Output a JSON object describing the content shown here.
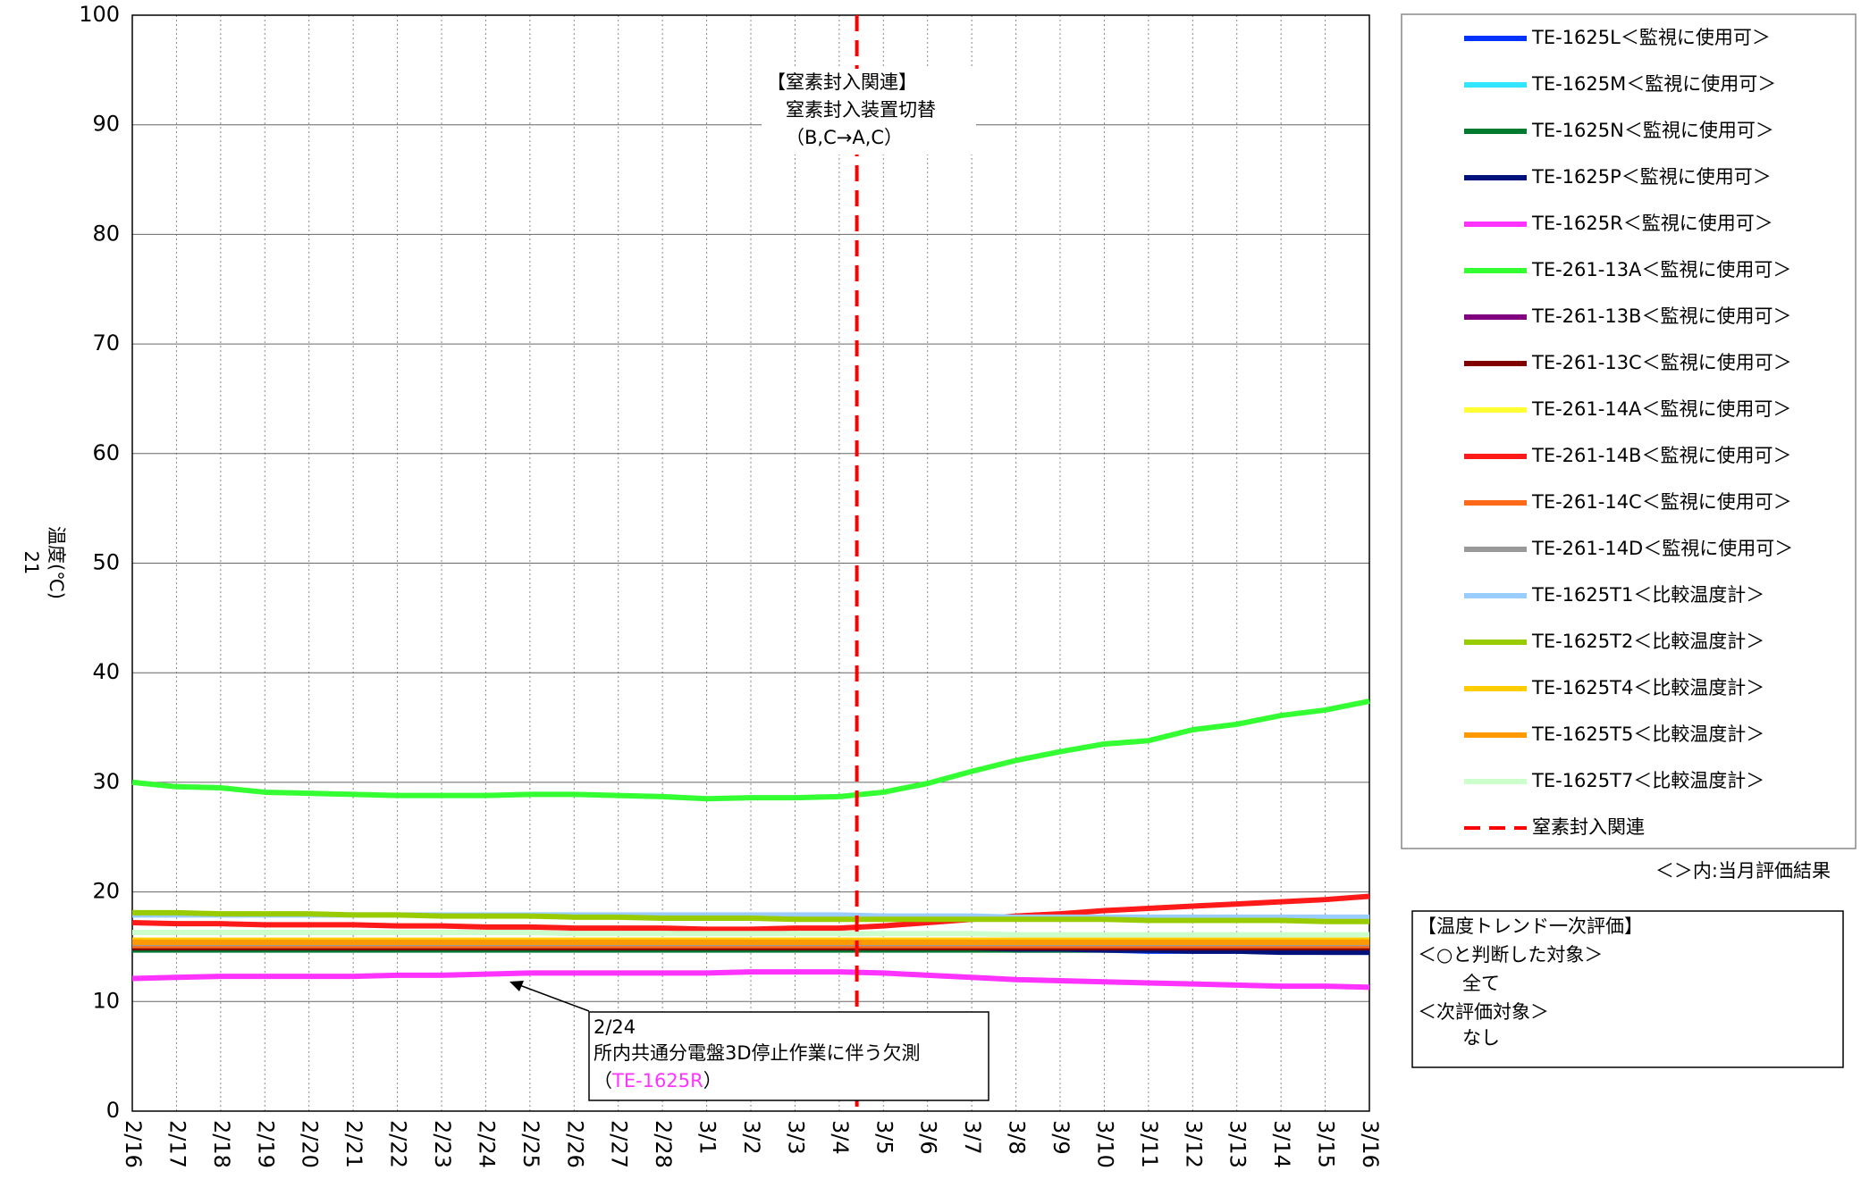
{
  "chart_data": {
    "type": "line",
    "y_label": "温度(℃)",
    "page_number": "21",
    "categories": [
      "2/16",
      "2/17",
      "2/18",
      "2/19",
      "2/20",
      "2/21",
      "2/22",
      "2/23",
      "2/24",
      "2/25",
      "2/26",
      "2/27",
      "2/28",
      "3/1",
      "3/2",
      "3/3",
      "3/4",
      "3/5",
      "3/6",
      "3/7",
      "3/8",
      "3/9",
      "3/10",
      "3/11",
      "3/12",
      "3/13",
      "3/14",
      "3/15",
      "3/16"
    ],
    "ylim": [
      0,
      100
    ],
    "yticks": [
      0,
      10,
      20,
      30,
      40,
      50,
      60,
      70,
      80,
      90,
      100
    ],
    "grid": true,
    "series": [
      {
        "name": "TE-1625L＜監視に使用可＞",
        "color": "#0033ff",
        "values": [
          14.8,
          14.8,
          14.8,
          14.8,
          14.8,
          14.8,
          14.8,
          14.8,
          14.8,
          14.8,
          14.8,
          14.8,
          14.8,
          14.8,
          14.8,
          14.8,
          14.8,
          14.8,
          14.8,
          14.8,
          14.7,
          14.7,
          14.7,
          14.6,
          14.6,
          14.6,
          14.6,
          14.5,
          14.5
        ]
      },
      {
        "name": "TE-1625M＜監視に使用可＞",
        "color": "#33e6ff",
        "values": [
          15,
          15,
          15,
          15,
          15,
          15,
          15,
          15,
          15,
          15,
          15,
          15,
          15,
          15,
          15,
          15,
          15,
          15,
          15,
          15,
          15,
          15,
          15,
          15,
          15,
          15,
          15,
          15,
          15
        ]
      },
      {
        "name": "TE-1625N＜監視に使用可＞",
        "color": "#007a2e",
        "values": [
          14.7,
          14.7,
          14.7,
          14.7,
          14.7,
          14.7,
          14.7,
          14.7,
          14.7,
          14.7,
          14.7,
          14.7,
          14.7,
          14.7,
          14.7,
          14.7,
          14.7,
          14.7,
          14.7,
          14.7,
          14.7,
          14.7,
          14.7,
          14.7,
          14.7,
          14.7,
          14.7,
          14.7,
          14.7
        ]
      },
      {
        "name": "TE-1625P＜監視に使用可＞",
        "color": "#00127a",
        "values": [
          14.9,
          14.9,
          14.9,
          14.9,
          14.9,
          14.9,
          14.9,
          14.9,
          14.9,
          14.9,
          14.9,
          14.9,
          14.9,
          14.9,
          14.9,
          14.9,
          14.9,
          14.9,
          14.9,
          14.9,
          14.8,
          14.8,
          14.7,
          14.7,
          14.6,
          14.6,
          14.5,
          14.5,
          14.5
        ]
      },
      {
        "name": "TE-1625R＜監視に使用可＞",
        "color": "#ff33ff",
        "values": [
          12.1,
          12.2,
          12.3,
          12.3,
          12.3,
          12.3,
          12.4,
          12.4,
          12.5,
          12.6,
          12.6,
          12.6,
          12.6,
          12.6,
          12.7,
          12.7,
          12.7,
          12.6,
          12.4,
          12.2,
          12.0,
          11.9,
          11.8,
          11.7,
          11.6,
          11.5,
          11.4,
          11.4,
          11.3
        ]
      },
      {
        "name": "TE-261-13A＜監視に使用可＞",
        "color": "#33ff33",
        "values": [
          30,
          29.6,
          29.5,
          29.1,
          29,
          28.9,
          28.8,
          28.8,
          28.8,
          28.9,
          28.9,
          28.8,
          28.7,
          28.5,
          28.6,
          28.6,
          28.7,
          29.1,
          29.9,
          31,
          32,
          32.8,
          33.5,
          33.8,
          34.8,
          35.3,
          36.1,
          36.6,
          37.4
        ]
      },
      {
        "name": "TE-261-13B＜監視に使用可＞",
        "color": "#800080",
        "values": [
          15.2,
          15.2,
          15.2,
          15.2,
          15.2,
          15.2,
          15.2,
          15.2,
          15.2,
          15.2,
          15.2,
          15.2,
          15.2,
          15.2,
          15.2,
          15.2,
          15.2,
          15.2,
          15.2,
          15.2,
          15.2,
          15.2,
          15.2,
          15.2,
          15.2,
          15.2,
          15.2,
          15.2,
          15.2
        ]
      },
      {
        "name": "TE-261-13C＜監視に使用可＞",
        "color": "#800000",
        "values": [
          14.9,
          14.9,
          14.9,
          14.9,
          14.9,
          14.9,
          14.9,
          14.9,
          14.9,
          14.9,
          14.9,
          14.9,
          14.9,
          14.9,
          14.9,
          14.9,
          14.9,
          14.9,
          14.9,
          14.9,
          14.9,
          14.9,
          14.9,
          14.9,
          14.9,
          14.9,
          14.9,
          14.9,
          14.9
        ]
      },
      {
        "name": "TE-261-14A＜監視に使用可＞",
        "color": "#ffff33",
        "values": [
          15.5,
          15.5,
          15.5,
          15.5,
          15.5,
          15.5,
          15.5,
          15.5,
          15.5,
          15.5,
          15.5,
          15.5,
          15.5,
          15.5,
          15.5,
          15.5,
          15.5,
          15.5,
          15.5,
          15.5,
          15.5,
          15.5,
          15.5,
          15.5,
          15.5,
          15.5,
          15.5,
          15.5,
          15.5
        ]
      },
      {
        "name": "TE-261-14B＜監視に使用可＞",
        "color": "#ff1a1a",
        "values": [
          17.2,
          17.1,
          17.1,
          17.0,
          17.0,
          17.0,
          16.9,
          16.9,
          16.8,
          16.8,
          16.7,
          16.7,
          16.7,
          16.6,
          16.6,
          16.7,
          16.7,
          16.9,
          17.2,
          17.5,
          17.8,
          18.0,
          18.3,
          18.5,
          18.7,
          18.9,
          19.1,
          19.3,
          19.6
        ]
      },
      {
        "name": "TE-261-14C＜監視に使用可＞",
        "color": "#ff6a1a",
        "values": [
          15.1,
          15.1,
          15.1,
          15.1,
          15.1,
          15.1,
          15.1,
          15.1,
          15.1,
          15.1,
          15.1,
          15.1,
          15.1,
          15.1,
          15.1,
          15.1,
          15.1,
          15.1,
          15.1,
          15.1,
          15.1,
          15.1,
          15.1,
          15.1,
          15.1,
          15.1,
          15.1,
          15.1,
          15.1
        ]
      },
      {
        "name": "TE-261-14D＜監視に使用可＞",
        "color": "#999999",
        "values": [
          15.3,
          15.3,
          15.3,
          15.3,
          15.3,
          15.3,
          15.3,
          15.3,
          15.3,
          15.3,
          15.3,
          15.3,
          15.3,
          15.3,
          15.3,
          15.3,
          15.3,
          15.3,
          15.3,
          15.3,
          15.3,
          15.3,
          15.3,
          15.3,
          15.3,
          15.3,
          15.3,
          15.3,
          15.3
        ]
      },
      {
        "name": "TE-1625T1＜比較温度計＞",
        "color": "#99ccff",
        "values": [
          17.9,
          17.9,
          17.9,
          17.9,
          17.9,
          17.9,
          17.9,
          17.9,
          17.9,
          17.9,
          17.9,
          17.9,
          17.9,
          17.9,
          17.9,
          17.9,
          17.9,
          17.8,
          17.8,
          17.8,
          17.7,
          17.7,
          17.7,
          17.7,
          17.7,
          17.7,
          17.7,
          17.7,
          17.7
        ]
      },
      {
        "name": "TE-1625T2＜比較温度計＞",
        "color": "#99cc00",
        "values": [
          18.1,
          18.1,
          18.0,
          18.0,
          18.0,
          17.9,
          17.9,
          17.8,
          17.8,
          17.8,
          17.7,
          17.7,
          17.6,
          17.6,
          17.6,
          17.5,
          17.5,
          17.5,
          17.5,
          17.5,
          17.5,
          17.5,
          17.5,
          17.4,
          17.4,
          17.4,
          17.4,
          17.3,
          17.3
        ]
      },
      {
        "name": "TE-1625T4＜比較温度計＞",
        "color": "#ffcc00",
        "values": [
          15.6,
          15.6,
          15.6,
          15.6,
          15.6,
          15.6,
          15.6,
          15.6,
          15.6,
          15.6,
          15.6,
          15.6,
          15.6,
          15.6,
          15.6,
          15.6,
          15.6,
          15.6,
          15.6,
          15.6,
          15.6,
          15.6,
          15.6,
          15.6,
          15.6,
          15.6,
          15.6,
          15.6,
          15.6
        ]
      },
      {
        "name": "TE-1625T5＜比較温度計＞",
        "color": "#ff9900",
        "values": [
          15.4,
          15.4,
          15.4,
          15.4,
          15.4,
          15.4,
          15.4,
          15.4,
          15.4,
          15.4,
          15.4,
          15.4,
          15.4,
          15.4,
          15.4,
          15.4,
          15.4,
          15.4,
          15.4,
          15.4,
          15.4,
          15.4,
          15.4,
          15.4,
          15.4,
          15.4,
          15.4,
          15.4,
          15.4
        ]
      },
      {
        "name": "TE-1625T7＜比較温度計＞",
        "color": "#ccffcc",
        "values": [
          16.3,
          16.3,
          16.3,
          16.3,
          16.3,
          16.3,
          16.3,
          16.3,
          16.3,
          16.3,
          16.2,
          16.2,
          16.2,
          16.2,
          16.2,
          16.2,
          16.2,
          16.2,
          16.2,
          16.2,
          16.1,
          16.1,
          16.1,
          16.1,
          16.1,
          16.1,
          16.1,
          16.1,
          16.1
        ]
      }
    ],
    "vline": {
      "name": "窒素封入関連",
      "x": 16.4,
      "color": "#ff0000"
    },
    "annotations": {
      "nitrogen": [
        "【窒素封入関連】",
        "窒素封入装置切替",
        "（B,C→A,C）"
      ],
      "missing": {
        "date": "2/24",
        "text": "所内共通分電盤3D停止作業に伴う欠測",
        "open": "（",
        "tag": "TE-1625R",
        "close": "）"
      }
    },
    "legend_note": "＜＞内:当月評価結果",
    "evaluation": {
      "title": "【温度トレンド一次評価】",
      "ok_header": "＜○と判断した対象＞",
      "ok": "全て",
      "next_header": "＜次評価対象＞",
      "next": "なし"
    }
  }
}
